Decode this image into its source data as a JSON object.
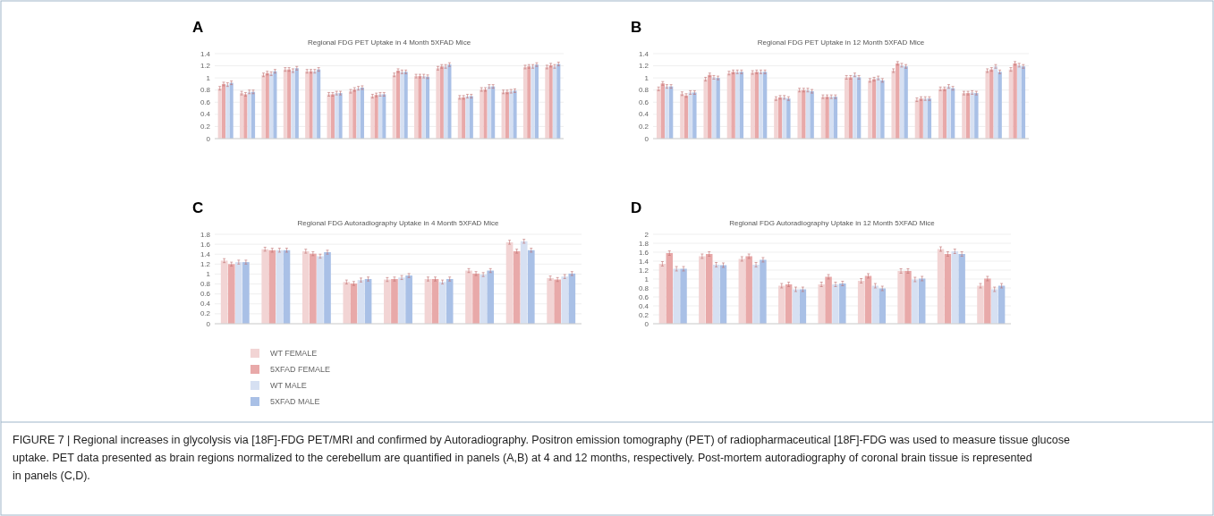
{
  "chart_data": [
    {
      "type": "bar",
      "title": "Regional FDG PET Uptake in 4 Month 5XFAD Mice",
      "annotations": [
        "A"
      ],
      "categories": [
        null,
        null,
        null,
        null,
        null,
        null,
        null,
        null,
        null,
        null,
        null,
        null,
        null,
        null,
        null,
        null
      ],
      "ylim": [
        0,
        1.4
      ],
      "yticks": [
        0,
        0.2,
        0.4,
        0.6,
        0.8,
        1,
        1.2,
        1.4
      ],
      "grid": "y",
      "series": [
        {
          "color": "#f2d4d4",
          "values": [
            0.83,
            0.75,
            1.05,
            1.14,
            1.11,
            0.73,
            0.78,
            0.7,
            1.05,
            1.03,
            1.16,
            0.68,
            0.81,
            0.77,
            1.18,
            1.18
          ],
          "errors": [
            0.03,
            0.03,
            0.03,
            0.03,
            0.03,
            0.03,
            0.03,
            0.03,
            0.03,
            0.03,
            0.03,
            0.03,
            0.03,
            0.03,
            0.03,
            0.03
          ]
        },
        {
          "color": "#e8a9a9",
          "values": [
            0.9,
            0.73,
            1.08,
            1.14,
            1.11,
            0.73,
            0.81,
            0.72,
            1.12,
            1.03,
            1.19,
            0.68,
            0.81,
            0.77,
            1.19,
            1.21
          ],
          "errors": [
            0.03,
            0.03,
            0.03,
            0.03,
            0.03,
            0.03,
            0.03,
            0.03,
            0.03,
            0.03,
            0.03,
            0.03,
            0.03,
            0.03,
            0.03,
            0.03
          ]
        },
        {
          "color": "#d6e0f2",
          "values": [
            0.89,
            0.77,
            1.07,
            1.12,
            1.11,
            0.75,
            0.83,
            0.73,
            1.1,
            1.03,
            1.19,
            0.7,
            0.86,
            0.78,
            1.19,
            1.19
          ],
          "errors": [
            0.03,
            0.03,
            0.03,
            0.03,
            0.03,
            0.03,
            0.03,
            0.03,
            0.03,
            0.03,
            0.03,
            0.03,
            0.03,
            0.03,
            0.03,
            0.03
          ]
        },
        {
          "color": "#a9c0e6",
          "values": [
            0.92,
            0.77,
            1.11,
            1.16,
            1.14,
            0.75,
            0.84,
            0.73,
            1.1,
            1.02,
            1.22,
            0.7,
            0.86,
            0.79,
            1.22,
            1.23
          ],
          "errors": [
            0.03,
            0.03,
            0.03,
            0.03,
            0.03,
            0.03,
            0.03,
            0.03,
            0.03,
            0.03,
            0.03,
            0.03,
            0.03,
            0.03,
            0.03,
            0.03
          ]
        }
      ]
    },
    {
      "type": "bar",
      "title": "Regional FDG PET Uptake in 12 Month 5XFAD Mice",
      "annotations": [
        "B"
      ],
      "categories": [
        null,
        null,
        null,
        null,
        null,
        null,
        null,
        null,
        null,
        null,
        null,
        null,
        null,
        null,
        null,
        null
      ],
      "ylim": [
        0,
        1.4
      ],
      "yticks": [
        0,
        0.2,
        0.4,
        0.6,
        0.8,
        1,
        1.2,
        1.4
      ],
      "grid": "y",
      "series": [
        {
          "color": "#f2d4d4",
          "values": [
            0.82,
            0.74,
            0.98,
            1.08,
            1.09,
            0.66,
            0.8,
            0.69,
            1.01,
            0.96,
            1.12,
            0.64,
            0.82,
            0.75,
            1.12,
            1.14
          ],
          "errors": [
            0.03,
            0.03,
            0.03,
            0.03,
            0.03,
            0.03,
            0.03,
            0.03,
            0.03,
            0.03,
            0.03,
            0.03,
            0.03,
            0.03,
            0.03,
            0.03
          ]
        },
        {
          "color": "#e8a9a9",
          "values": [
            0.91,
            0.71,
            1.05,
            1.1,
            1.1,
            0.68,
            0.8,
            0.69,
            1.01,
            0.98,
            1.24,
            0.66,
            0.82,
            0.75,
            1.14,
            1.24
          ],
          "errors": [
            0.03,
            0.03,
            0.03,
            0.03,
            0.03,
            0.03,
            0.03,
            0.03,
            0.03,
            0.03,
            0.03,
            0.03,
            0.03,
            0.03,
            0.03,
            0.03
          ]
        },
        {
          "color": "#d6e0f2",
          "values": [
            0.86,
            0.76,
            1.01,
            1.1,
            1.1,
            0.68,
            0.8,
            0.69,
            1.05,
            1.0,
            1.21,
            0.66,
            0.86,
            0.76,
            1.19,
            1.21
          ],
          "errors": [
            0.03,
            0.03,
            0.03,
            0.03,
            0.03,
            0.03,
            0.03,
            0.03,
            0.03,
            0.03,
            0.03,
            0.03,
            0.03,
            0.03,
            0.03,
            0.03
          ]
        },
        {
          "color": "#a9c0e6",
          "values": [
            0.86,
            0.76,
            1.0,
            1.1,
            1.1,
            0.66,
            0.78,
            0.69,
            1.01,
            0.96,
            1.19,
            0.66,
            0.83,
            0.75,
            1.1,
            1.19
          ],
          "errors": [
            0.03,
            0.03,
            0.03,
            0.03,
            0.03,
            0.03,
            0.03,
            0.03,
            0.03,
            0.03,
            0.03,
            0.03,
            0.03,
            0.03,
            0.03,
            0.03
          ]
        }
      ]
    },
    {
      "type": "bar",
      "title": "Regional FDG Autoradiography Uptake in 4 Month 5XFAD Mice",
      "annotations": [
        "C"
      ],
      "categories": [
        null,
        null,
        null,
        null,
        null,
        null,
        null,
        null,
        null
      ],
      "ylim": [
        0,
        1.8
      ],
      "yticks": [
        0,
        0.2,
        0.4,
        0.6,
        0.8,
        1,
        1.2,
        1.4,
        1.6,
        1.8
      ],
      "grid": "y",
      "legend": "bottom left",
      "series": [
        {
          "name": "WT FEMALE",
          "color": "#f2d4d4",
          "values": [
            1.27,
            1.5,
            1.46,
            0.84,
            0.89,
            0.9,
            1.07,
            1.64,
            0.92
          ],
          "errors": [
            0.04,
            0.04,
            0.04,
            0.04,
            0.04,
            0.04,
            0.04,
            0.04,
            0.04
          ]
        },
        {
          "name": "5XFAD FEMALE",
          "color": "#e8a9a9",
          "values": [
            1.2,
            1.48,
            1.41,
            0.81,
            0.9,
            0.9,
            1.01,
            1.46,
            0.89
          ],
          "errors": [
            0.04,
            0.04,
            0.04,
            0.04,
            0.04,
            0.04,
            0.04,
            0.04,
            0.04
          ]
        },
        {
          "name": "WT MALE",
          "color": "#d6e0f2",
          "values": [
            1.24,
            1.48,
            1.36,
            0.88,
            0.93,
            0.84,
            0.99,
            1.66,
            0.95
          ],
          "errors": [
            0.04,
            0.04,
            0.04,
            0.04,
            0.04,
            0.04,
            0.04,
            0.04,
            0.04
          ]
        },
        {
          "name": "5XFAD MALE",
          "color": "#a9c0e6",
          "values": [
            1.24,
            1.48,
            1.44,
            0.9,
            0.97,
            0.9,
            1.07,
            1.48,
            1.01
          ],
          "errors": [
            0.04,
            0.04,
            0.04,
            0.04,
            0.04,
            0.04,
            0.04,
            0.04,
            0.04
          ]
        }
      ]
    },
    {
      "type": "bar",
      "title": "Regional FDG Autoradiography Uptake in 12 Month 5XFAD Mice",
      "annotations": [
        "D",
        "FIGURE 7 | Regional increases in glycolysis via [18F]-FDG PET/MRI and confirmed by Autoradiography. Positron emission tomography (PET) of radiopharmaceutical [18F]-FDG was used to measure tissue glucose uptake. PET data presented as brain regions normalized to the cerebellum are quantified in panels (A,B) at 4 and 12 months, respectively. Post-mortem autoradiography of coronal brain tissue is represented in panels (C,D)."
      ],
      "categories": [
        null,
        null,
        null,
        null,
        null,
        null,
        null,
        null,
        null
      ],
      "ylim": [
        0,
        2
      ],
      "yticks": [
        0,
        0.2,
        0.4,
        0.6,
        0.8,
        1,
        1.2,
        1.4,
        1.6,
        1.8,
        2
      ],
      "grid": "y",
      "series": [
        {
          "color": "#f2d4d4",
          "values": [
            1.34,
            1.51,
            1.45,
            0.85,
            0.88,
            0.96,
            1.18,
            1.67,
            0.85
          ],
          "errors": [
            0.05,
            0.05,
            0.05,
            0.05,
            0.05,
            0.05,
            0.05,
            0.05,
            0.05
          ]
        },
        {
          "color": "#e8a9a9",
          "values": [
            1.58,
            1.56,
            1.51,
            0.88,
            1.05,
            1.07,
            1.18,
            1.56,
            1.01
          ],
          "errors": [
            0.05,
            0.05,
            0.05,
            0.05,
            0.05,
            0.05,
            0.05,
            0.05,
            0.05
          ]
        },
        {
          "color": "#d6e0f2",
          "values": [
            1.23,
            1.32,
            1.32,
            0.77,
            0.88,
            0.85,
            0.99,
            1.62,
            0.77
          ],
          "errors": [
            0.05,
            0.05,
            0.05,
            0.05,
            0.05,
            0.05,
            0.05,
            0.05,
            0.05
          ]
        },
        {
          "color": "#a9c0e6",
          "values": [
            1.23,
            1.31,
            1.43,
            0.77,
            0.9,
            0.79,
            1.01,
            1.56,
            0.85
          ],
          "errors": [
            0.05,
            0.05,
            0.05,
            0.05,
            0.05,
            0.05,
            0.05,
            0.05,
            0.05
          ]
        }
      ]
    }
  ]
}
